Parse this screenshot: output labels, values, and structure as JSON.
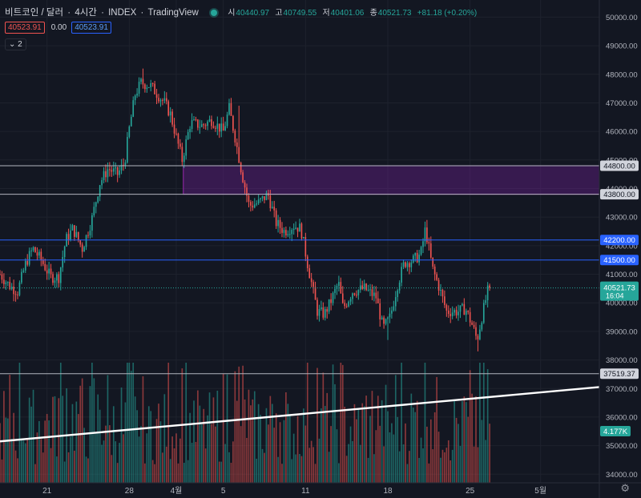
{
  "header": {
    "symbol": "비트코인 / 달러",
    "interval": "4시간",
    "exchange": "INDEX",
    "provider": "TradingView",
    "ohlc": {
      "open_label": "시",
      "open": "40440.97",
      "high_label": "고",
      "high": "40749.55",
      "low_label": "저",
      "low": "40401.06",
      "close_label": "종",
      "close": "40521.73",
      "change": "+81.18 (+0.20%)"
    }
  },
  "indicator_row": {
    "bid": "40523.91",
    "spread": "0.00",
    "ask": "40523.91",
    "collapse_label": "2"
  },
  "colors": {
    "background": "#131722",
    "up": "#26a69a",
    "down": "#ef5350",
    "grid": "#1e222d",
    "axis_text": "#b2b5be",
    "zone": "#7b1fa2",
    "blue_line": "#2962ff"
  },
  "chart_data": {
    "type": "candlestick",
    "price_axis": {
      "ylim": [
        33700,
        50600
      ],
      "ticks": [
        "34000.00",
        "35000.00",
        "36000.00",
        "37000.00",
        "38000.00",
        "39000.00",
        "40000.00",
        "41000.00",
        "42000.00",
        "43000.00",
        "44000.00",
        "45000.00",
        "46000.00",
        "47000.00",
        "48000.00",
        "49000.00",
        "50000.00"
      ]
    },
    "time_axis": {
      "labels": [
        {
          "t": 21,
          "text": "21"
        },
        {
          "t": 28,
          "text": "28"
        },
        {
          "t": 32,
          "text": "4월"
        },
        {
          "t": 36,
          "text": "5"
        },
        {
          "t": 43,
          "text": "11"
        },
        {
          "t": 50,
          "text": "18"
        },
        {
          "t": 57,
          "text": "25"
        },
        {
          "t": 63,
          "text": "5월"
        }
      ],
      "tlim": [
        17.0,
        68.0
      ]
    },
    "candles_per_day": 6,
    "close_path": [
      [
        17.0,
        41000
      ],
      [
        17.8,
        40600
      ],
      [
        18.5,
        40400
      ],
      [
        19.2,
        41400
      ],
      [
        19.8,
        41900
      ],
      [
        20.5,
        41500
      ],
      [
        21.3,
        40900
      ],
      [
        22.0,
        40900
      ],
      [
        22.6,
        42200
      ],
      [
        23.2,
        42600
      ],
      [
        24.0,
        41900
      ],
      [
        24.8,
        42900
      ],
      [
        25.5,
        44200
      ],
      [
        26.2,
        44700
      ],
      [
        27.0,
        44500
      ],
      [
        27.6,
        44900
      ],
      [
        28.0,
        46100
      ],
      [
        28.5,
        47300
      ],
      [
        29.0,
        47700
      ],
      [
        29.8,
        47600
      ],
      [
        30.4,
        47300
      ],
      [
        31.0,
        47000
      ],
      [
        31.5,
        46600
      ],
      [
        32.0,
        45800
      ],
      [
        32.5,
        45000
      ],
      [
        33.2,
        46300
      ],
      [
        34.2,
        46200
      ],
      [
        35.0,
        46400
      ],
      [
        36.0,
        46000
      ],
      [
        36.5,
        46800
      ],
      [
        37.0,
        45800
      ],
      [
        37.6,
        44500
      ],
      [
        38.2,
        43400
      ],
      [
        39.0,
        43500
      ],
      [
        39.8,
        43800
      ],
      [
        40.5,
        42800
      ],
      [
        41.2,
        42500
      ],
      [
        42.0,
        42700
      ],
      [
        42.6,
        42600
      ],
      [
        43.2,
        41300
      ],
      [
        44.0,
        39700
      ],
      [
        44.6,
        39600
      ],
      [
        45.2,
        40100
      ],
      [
        45.8,
        40700
      ],
      [
        46.2,
        39800
      ],
      [
        47.0,
        40400
      ],
      [
        48.0,
        40500
      ],
      [
        49.0,
        40200
      ],
      [
        49.6,
        39100
      ],
      [
        50.2,
        39500
      ],
      [
        50.8,
        40600
      ],
      [
        51.4,
        41400
      ],
      [
        52.2,
        41500
      ],
      [
        52.8,
        41700
      ],
      [
        53.2,
        42600
      ],
      [
        53.8,
        41200
      ],
      [
        54.4,
        40500
      ],
      [
        55.0,
        39700
      ],
      [
        56.0,
        39700
      ],
      [
        56.6,
        39800
      ],
      [
        57.2,
        39200
      ],
      [
        57.6,
        38700
      ],
      [
        58.0,
        39500
      ],
      [
        58.5,
        40400
      ],
      [
        58.8,
        40522
      ]
    ],
    "wick_spikes": [
      {
        "t": 29.2,
        "high": 48200
      },
      {
        "t": 37.4,
        "high": 46900
      },
      {
        "t": 53.4,
        "high": 42900
      },
      {
        "t": 57.7,
        "low": 38300
      },
      {
        "t": 50.0,
        "low": 38700
      }
    ],
    "current_price": {
      "value": 40521.73,
      "label": "40521.73",
      "countdown": "16:04"
    },
    "horizontal_lines": [
      {
        "value": 44800,
        "label": "44800.00",
        "color": "#b2b5be"
      },
      {
        "value": 43800,
        "label": "43800.00",
        "color": "#b2b5be"
      },
      {
        "value": 42200,
        "label": "42200.00",
        "color": "#2962ff"
      },
      {
        "value": 41500,
        "label": "41500.00",
        "color": "#2962ff"
      },
      {
        "value": 37519.37,
        "label": "37519.37",
        "color": "#b2b5be"
      }
    ],
    "zone": {
      "t_from": 32.6,
      "t_to": 68.0,
      "high": 44800,
      "low": 43800
    },
    "trend_line": {
      "t1": 17.0,
      "p1": 35150,
      "t2": 68.0,
      "p2": 37050
    },
    "volume": {
      "label": "4.177K",
      "max_ratio": 1.0
    }
  }
}
